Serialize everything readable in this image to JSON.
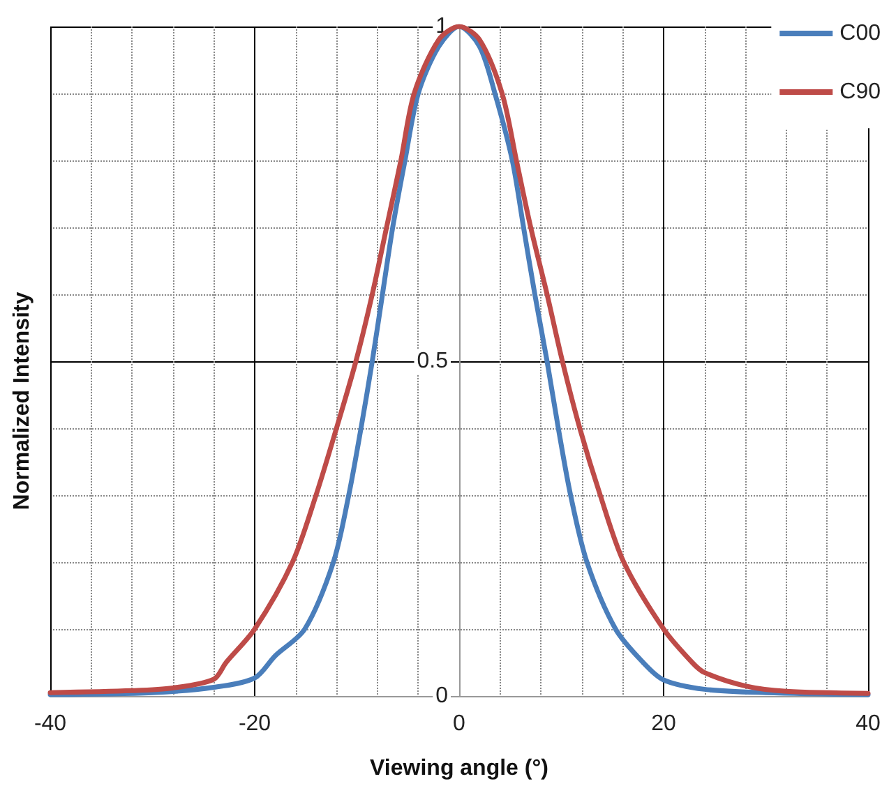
{
  "chart_data": {
    "type": "line",
    "xlabel": "Viewing angle (°)",
    "ylabel": "Normalized Intensity",
    "xlim": [
      -40,
      40
    ],
    "xticks": [
      -40,
      -20,
      0,
      20,
      40
    ],
    "ylim": [
      0,
      1
    ],
    "yticks": [
      0,
      0.5,
      1
    ],
    "grid": true,
    "legend": "top right",
    "marker": "none",
    "line_style": "solid",
    "series": [
      {
        "name": "C00",
        "color": "#4a7ebb",
        "x": [
          -40,
          -30,
          -24,
          -20,
          -18,
          -15.1,
          -12.3,
          -10.8,
          -9.6,
          -8.5,
          -7.5,
          -6.5,
          -5.3,
          -4,
          -2,
          0,
          2,
          3.5,
          5.2,
          6.3,
          7.4,
          8.6,
          9.7,
          10.9,
          12.5,
          15.3,
          18,
          20,
          24,
          30,
          40
        ],
        "values": [
          0.002,
          0.005,
          0.013,
          0.027,
          0.06,
          0.1,
          0.2,
          0.3,
          0.4,
          0.5,
          0.6,
          0.7,
          0.8,
          0.9,
          0.97,
          1,
          0.97,
          0.9,
          0.8,
          0.7,
          0.6,
          0.5,
          0.4,
          0.3,
          0.2,
          0.1,
          0.05,
          0.024,
          0.01,
          0.005,
          0.002
        ]
      },
      {
        "name": "C90",
        "color": "#be4b48",
        "x": [
          -40,
          -32,
          -28,
          -24,
          -22.8,
          -20,
          -16.3,
          -14,
          -12,
          -10.1,
          -8.5,
          -7.1,
          -5.7,
          -4.4,
          -2,
          0,
          2,
          4.2,
          5.6,
          7,
          8.6,
          10.1,
          11.8,
          13.8,
          16.1,
          20,
          22.8,
          24,
          28,
          32,
          40
        ],
        "values": [
          0.005,
          0.008,
          0.012,
          0.025,
          0.05,
          0.1,
          0.2,
          0.3,
          0.4,
          0.5,
          0.6,
          0.7,
          0.8,
          0.9,
          0.98,
          1,
          0.98,
          0.9,
          0.8,
          0.7,
          0.6,
          0.5,
          0.4,
          0.3,
          0.2,
          0.1,
          0.05,
          0.035,
          0.015,
          0.007,
          0.004
        ]
      }
    ]
  }
}
